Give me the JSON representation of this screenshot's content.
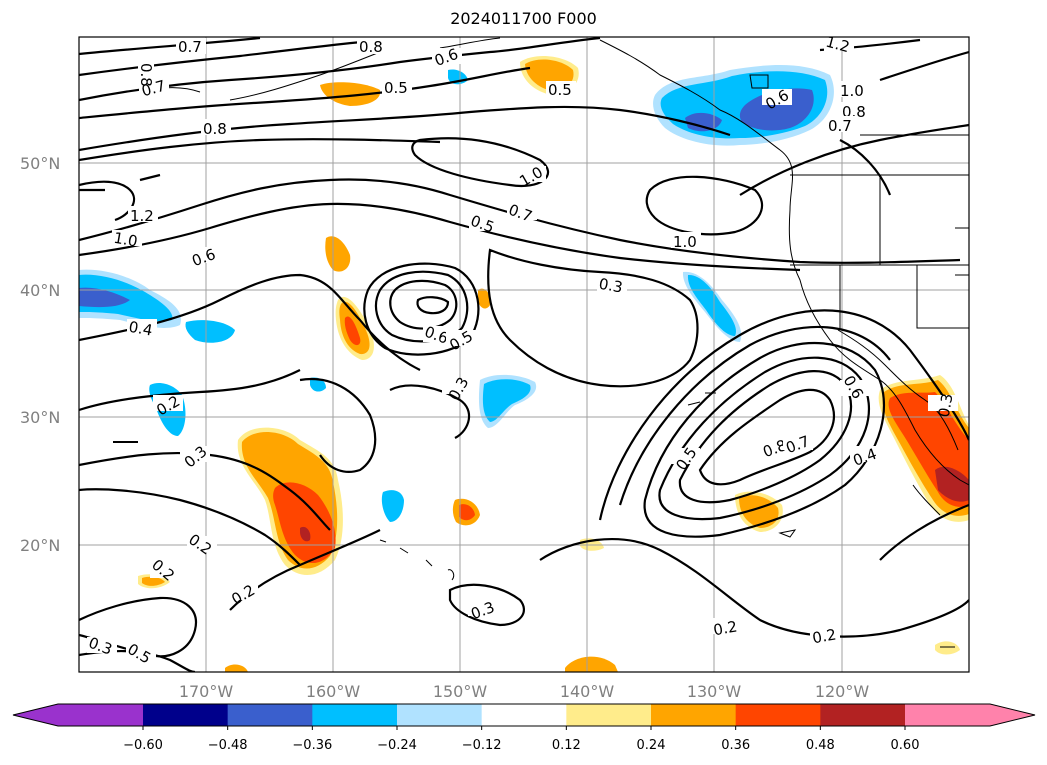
{
  "title": "2024011700 F000",
  "latitude_labels": [
    "50°N",
    "40°N",
    "30°N",
    "20°N"
  ],
  "longitude_labels": [
    "170°W",
    "160°W",
    "150°W",
    "140°W",
    "130°W",
    "120°W"
  ],
  "colorbar": {
    "tick_labels": [
      "−0.60",
      "−0.48",
      "−0.36",
      "−0.24",
      "−0.12",
      "0.12",
      "0.24",
      "0.36",
      "0.48",
      "0.60"
    ],
    "colors": [
      "#9a32cd",
      "#00008b",
      "#3a5fcd",
      "#00bfff",
      "#b0e2ff",
      "#ffffff",
      "#ffec8b",
      "#ffa500",
      "#ff4500",
      "#b22222",
      "#ff82ab"
    ]
  },
  "contour_labels": [
    "0.7",
    "0.8",
    "0.6",
    "0.5",
    "0.5",
    "1.2",
    "1.0",
    "0.6",
    "0.8",
    "0.7",
    "0.7",
    "0.8",
    "0.8",
    "1.0",
    "0.7",
    "0.5",
    "1.2",
    "1.0",
    "0.6",
    "1.0",
    "0.3",
    "0.4",
    "0.6",
    "0.5",
    "0.3",
    "0.2",
    "0.3",
    "0.6",
    "0.3",
    "0.4",
    "0.8",
    "0.7",
    "0.5",
    "0.2",
    "0.2",
    "0.2",
    "0.3",
    "0.2",
    "0.2",
    "0.3",
    "0.5"
  ]
}
